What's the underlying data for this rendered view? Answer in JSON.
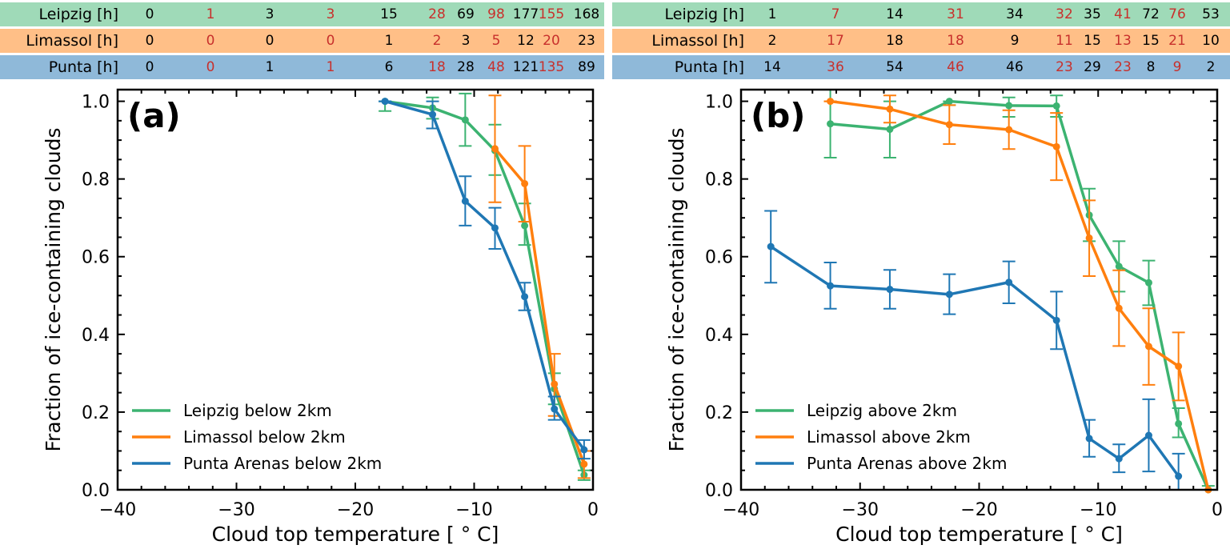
{
  "colors": {
    "leipzig": "#3cb371",
    "limassol": "#ff7f0e",
    "punta": "#1f77b4",
    "leipzig_bg": "#9fdab8",
    "limassol_bg": "#ffbf87",
    "punta_bg": "#8fb9d9",
    "alt_text": "#c8302c"
  },
  "tables": [
    {
      "rows": [
        {
          "label": "Leipzig [h]",
          "values": [
            "0",
            "1",
            "3",
            "3",
            "15",
            "28",
            "69",
            "98",
            "177",
            "155",
            "168"
          ]
        },
        {
          "label": "Limassol [h]",
          "values": [
            "0",
            "0",
            "0",
            "0",
            "1",
            "2",
            "3",
            "5",
            "12",
            "20",
            "23"
          ]
        },
        {
          "label": "Punta [h]",
          "values": [
            "0",
            "0",
            "1",
            "1",
            "6",
            "18",
            "28",
            "48",
            "121",
            "135",
            "89"
          ]
        }
      ]
    },
    {
      "rows": [
        {
          "label": "Leipzig [h]",
          "values": [
            "1",
            "7",
            "14",
            "31",
            "34",
            "32",
            "35",
            "41",
            "72",
            "76",
            "53"
          ]
        },
        {
          "label": "Limassol [h]",
          "values": [
            "2",
            "17",
            "18",
            "18",
            "9",
            "11",
            "15",
            "13",
            "15",
            "21",
            "10"
          ]
        },
        {
          "label": "Punta [h]",
          "values": [
            "14",
            "36",
            "54",
            "46",
            "46",
            "23",
            "29",
            "23",
            "8",
            "9",
            "2"
          ]
        }
      ]
    }
  ],
  "chart_data": [
    {
      "type": "line",
      "panel_label": "(a)",
      "xlabel": "Cloud top temperature [$^\\circ$C]",
      "xlabel_text": "Cloud top temperature [ ° C]",
      "ylabel": "Fraction of ice-containing clouds",
      "xlim": [
        -40,
        0
      ],
      "ylim": [
        0,
        1.03
      ],
      "xticks": [
        "−40",
        "−30",
        "−20",
        "−10",
        "0"
      ],
      "yticks": [
        "0.0",
        "0.2",
        "0.4",
        "0.6",
        "0.8",
        "1.0"
      ],
      "legend_position": "lower-left",
      "series": [
        {
          "name": "Leipzig below 2km",
          "color_key": "leipzig",
          "x": [
            -17.5,
            -13.5,
            -10.75,
            -8.25,
            -5.75,
            -3.25,
            -0.75
          ],
          "y": [
            1.0,
            0.983,
            0.952,
            0.873,
            0.68,
            0.26,
            0.038
          ],
          "err_low": [
            0.975,
            0.955,
            0.885,
            0.81,
            0.63,
            0.22,
            0.025
          ],
          "err_high": [
            1.0,
            1.01,
            1.02,
            0.94,
            0.737,
            0.3,
            0.05
          ]
        },
        {
          "name": "Limassol below 2km",
          "color_key": "limassol",
          "x": [
            -8.25,
            -5.75,
            -3.25,
            -0.75
          ],
          "y": [
            0.878,
            0.788,
            0.272,
            0.066
          ],
          "err_low": [
            0.74,
            0.69,
            0.19,
            0.03
          ],
          "err_high": [
            1.015,
            0.885,
            0.35,
            0.1
          ]
        },
        {
          "name": "Punta Arenas below 2km",
          "color_key": "punta",
          "x": [
            -17.5,
            -13.5,
            -10.75,
            -8.25,
            -5.75,
            -3.25,
            -0.75
          ],
          "y": [
            1.0,
            0.966,
            0.743,
            0.674,
            0.497,
            0.208,
            0.103
          ],
          "err_low": [
            1.0,
            0.93,
            0.68,
            0.62,
            0.462,
            0.18,
            0.08
          ],
          "err_high": [
            1.0,
            1.0,
            0.807,
            0.726,
            0.533,
            0.24,
            0.128
          ]
        }
      ]
    },
    {
      "type": "line",
      "panel_label": "(b)",
      "xlabel": "Cloud top temperature [$^\\circ$C]",
      "xlabel_text": "Cloud top temperature [ ° C]",
      "ylabel": "Fraction of ice-containing clouds",
      "xlim": [
        -40,
        0
      ],
      "ylim": [
        0,
        1.03
      ],
      "xticks": [
        "−40",
        "−30",
        "−20",
        "−10",
        "0"
      ],
      "yticks": [
        "0.0",
        "0.2",
        "0.4",
        "0.6",
        "0.8",
        "1.0"
      ],
      "legend_position": "lower-left",
      "series": [
        {
          "name": "Leipzig above 2km",
          "color_key": "leipzig",
          "x": [
            -32.5,
            -27.5,
            -22.5,
            -17.5,
            -13.5,
            -10.75,
            -8.25,
            -5.75,
            -3.25,
            -0.75
          ],
          "y": [
            0.942,
            0.928,
            1.0,
            0.989,
            0.988,
            0.707,
            0.575,
            0.533,
            0.17,
            0.0
          ],
          "err_low": [
            0.855,
            0.855,
            0.99,
            0.96,
            0.96,
            0.64,
            0.51,
            0.475,
            0.135,
            0.0
          ],
          "err_high": [
            1.03,
            1.0,
            1.0,
            1.01,
            1.015,
            0.775,
            0.64,
            0.59,
            0.21,
            0.01
          ]
        },
        {
          "name": "Limassol above 2km",
          "color_key": "limassol",
          "x": [
            -32.5,
            -27.5,
            -22.5,
            -17.5,
            -13.5,
            -10.75,
            -8.25,
            -5.75,
            -3.25,
            -0.75
          ],
          "y": [
            1.0,
            0.98,
            0.94,
            0.927,
            0.883,
            0.648,
            0.467,
            0.369,
            0.318,
            0.0
          ],
          "err_low": [
            1.0,
            0.945,
            0.89,
            0.877,
            0.797,
            0.55,
            0.37,
            0.27,
            0.23,
            0.0
          ],
          "err_high": [
            1.0,
            1.015,
            0.99,
            0.977,
            0.97,
            0.745,
            0.565,
            0.467,
            0.405,
            0.0
          ]
        },
        {
          "name": "Punta Arenas above 2km",
          "color_key": "punta",
          "x": [
            -37.5,
            -32.5,
            -27.5,
            -22.5,
            -17.5,
            -13.5,
            -10.75,
            -8.25,
            -5.75,
            -3.25
          ],
          "y": [
            0.626,
            0.525,
            0.516,
            0.503,
            0.534,
            0.436,
            0.132,
            0.08,
            0.14,
            0.035
          ],
          "err_low": [
            0.533,
            0.466,
            0.466,
            0.452,
            0.48,
            0.362,
            0.085,
            0.045,
            0.047,
            0.0
          ],
          "err_high": [
            0.718,
            0.585,
            0.566,
            0.555,
            0.588,
            0.51,
            0.18,
            0.117,
            0.233,
            0.093
          ]
        }
      ]
    }
  ]
}
